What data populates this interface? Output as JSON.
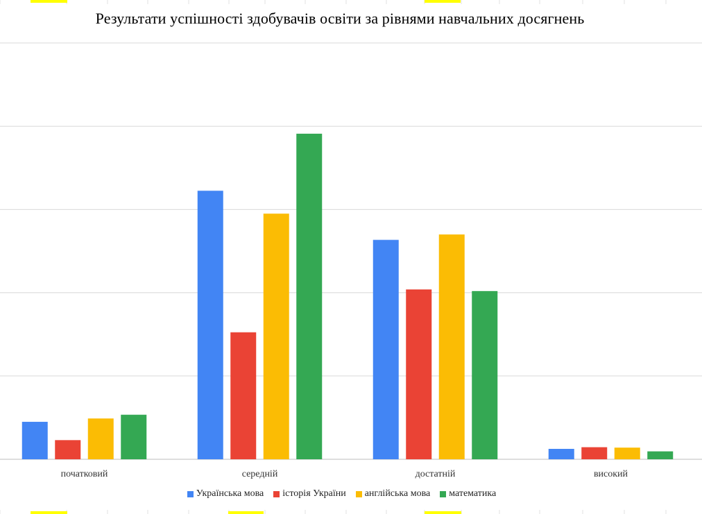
{
  "colors": {
    "ukr": "#4285F4",
    "hist": "#EA4335",
    "eng": "#FBBC04",
    "math": "#34A853",
    "grid": "#d9d9d9",
    "highlight": "#FFFF00",
    "sheet_grid": "#e0e0e0"
  },
  "chart_data": {
    "type": "bar",
    "title": "Результати успішності здобувачів освіти за рівнями навчальних досягнень",
    "xlabel": "",
    "ylabel": "",
    "categories": [
      "початковий",
      "середній",
      "достатній",
      "високий"
    ],
    "series": [
      {
        "name": "Українська мова",
        "color_key": "ukr",
        "values": [
          9.0,
          64.5,
          52.7,
          2.5
        ]
      },
      {
        "name": "історія України",
        "color_key": "hist",
        "values": [
          4.6,
          30.5,
          40.8,
          2.9
        ]
      },
      {
        "name": "англійська мова",
        "color_key": "eng",
        "values": [
          9.8,
          59.0,
          54.0,
          2.8
        ]
      },
      {
        "name": "математика",
        "color_key": "math",
        "values": [
          10.7,
          78.2,
          40.4,
          1.9
        ]
      }
    ],
    "ylim": [
      0,
      100
    ],
    "gridlines": [
      0,
      20,
      40,
      60,
      80,
      100
    ],
    "grid": true,
    "y_tick_labels_visible": false,
    "legend_position": "bottom"
  }
}
